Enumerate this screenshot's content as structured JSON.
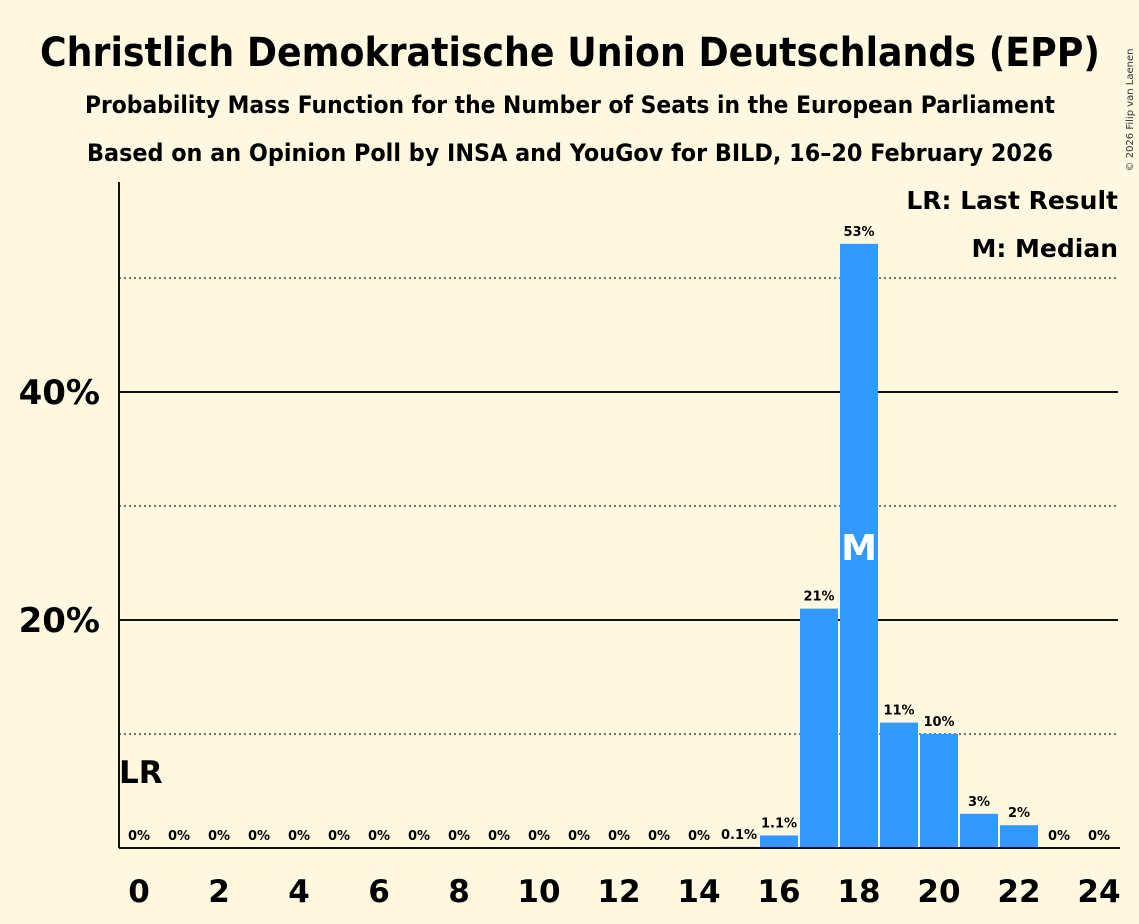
{
  "chart_data": {
    "type": "bar",
    "title": "Christlich Demokratische Union Deutschlands (EPP)",
    "subtitle": "Probability Mass Function for the Number of Seats in the European Parliament",
    "subtitle2": "Based on an Opinion Poll by INSA and YouGov for BILD, 16–20 February 2026",
    "copyright": "© 2026 Filip van Laenen",
    "xlabel": "",
    "ylabel": "",
    "x": [
      0,
      1,
      2,
      3,
      4,
      5,
      6,
      7,
      8,
      9,
      10,
      11,
      12,
      13,
      14,
      15,
      16,
      17,
      18,
      19,
      20,
      21,
      22,
      23,
      24
    ],
    "values": [
      0,
      0,
      0,
      0,
      0,
      0,
      0,
      0,
      0,
      0,
      0,
      0,
      0,
      0,
      0,
      0.1,
      1.1,
      21,
      53,
      11,
      10,
      3,
      2,
      0,
      0
    ],
    "data_labels": [
      "0%",
      "0%",
      "0%",
      "0%",
      "0%",
      "0%",
      "0%",
      "0%",
      "0%",
      "0%",
      "0%",
      "0%",
      "0%",
      "0%",
      "0%",
      "0.1%",
      "1.1%",
      "21%",
      "53%",
      "11%",
      "10%",
      "3%",
      "2%",
      "0%",
      "0%"
    ],
    "x_ticks": [
      "0",
      "2",
      "4",
      "6",
      "8",
      "10",
      "12",
      "14",
      "16",
      "18",
      "20",
      "22",
      "24"
    ],
    "y_ticks": [
      {
        "value": 20,
        "label": "20%"
      },
      {
        "value": 40,
        "label": "40%"
      }
    ],
    "minor_gridlines": [
      10,
      30,
      50
    ],
    "ylim": [
      0,
      58
    ],
    "last_result": {
      "seat": 0,
      "label": "LR"
    },
    "median": {
      "seat": 18,
      "label": "M"
    },
    "legend": [
      "LR: Last Result",
      "M: Median"
    ],
    "legend_position": "top-right",
    "bar_color": "#3399ff"
  }
}
